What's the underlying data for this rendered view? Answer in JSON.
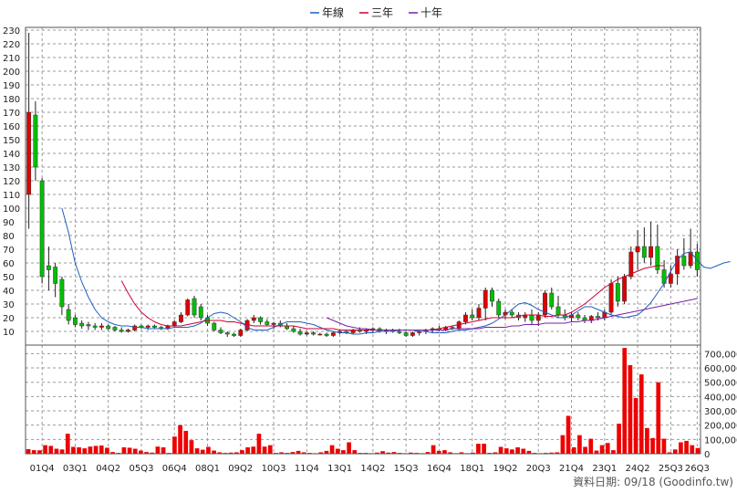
{
  "legend": [
    {
      "name": "年線",
      "color": "#1f5fbf"
    },
    {
      "name": "三年",
      "color": "#cc0033"
    },
    {
      "name": "十年",
      "color": "#7a1fa8"
    }
  ],
  "footer": {
    "source": "資料日期: 09/18  (Goodinfo.tw)"
  },
  "colors": {
    "up": "#e00000",
    "down": "#00c000",
    "volume": "#ee0000",
    "wick": "#222222"
  },
  "chart_data": [
    {
      "type": "candlestick",
      "title": "",
      "yticks": [
        10,
        20,
        30,
        40,
        50,
        60,
        70,
        80,
        90,
        100,
        110,
        120,
        130,
        140,
        150,
        160,
        170,
        180,
        190,
        200,
        210,
        220,
        230
      ],
      "ylim": [
        0,
        232
      ],
      "xticks": [
        "01Q4",
        "03Q1",
        "04Q2",
        "05Q3",
        "06Q4",
        "08Q1",
        "09Q2",
        "10Q3",
        "11Q4",
        "13Q1",
        "14Q2",
        "15Q3",
        "16Q4",
        "18Q1",
        "19Q2",
        "20Q3",
        "21Q4",
        "23Q1",
        "24Q2",
        "25Q3",
        "26Q3"
      ],
      "xtick_index": [
        2,
        7,
        12,
        17,
        22,
        27,
        32,
        37,
        42,
        47,
        52,
        57,
        62,
        67,
        72,
        77,
        82,
        87,
        92,
        97,
        101
      ],
      "ohlc": [
        [
          110,
          228,
          85,
          170
        ],
        [
          168,
          178,
          120,
          130
        ],
        [
          120,
          122,
          45,
          50
        ],
        [
          58,
          72,
          40,
          55
        ],
        [
          57,
          60,
          35,
          45
        ],
        [
          48,
          50,
          22,
          28
        ],
        [
          26,
          30,
          15,
          18
        ],
        [
          20,
          22,
          13,
          15
        ],
        [
          16,
          18,
          12,
          14
        ],
        [
          15,
          17,
          11,
          14
        ],
        [
          14,
          16,
          11,
          13
        ],
        [
          13,
          16,
          11,
          14
        ],
        [
          14,
          15,
          11,
          12
        ],
        [
          13,
          14,
          10,
          11
        ],
        [
          11,
          13,
          9,
          10
        ],
        [
          10,
          12,
          9,
          11
        ],
        [
          11,
          15,
          10,
          14
        ],
        [
          14,
          15,
          12,
          13
        ],
        [
          13,
          15,
          11,
          14
        ],
        [
          14,
          15,
          12,
          13
        ],
        [
          13,
          14,
          11,
          12
        ],
        [
          12,
          15,
          11,
          14
        ],
        [
          14,
          18,
          13,
          17
        ],
        [
          17,
          24,
          16,
          22
        ],
        [
          22,
          34,
          21,
          33
        ],
        [
          34,
          36,
          20,
          22
        ],
        [
          28,
          30,
          18,
          20
        ],
        [
          20,
          22,
          14,
          16
        ],
        [
          16,
          17,
          10,
          11
        ],
        [
          11,
          13,
          8,
          9
        ],
        [
          9,
          10,
          6,
          8
        ],
        [
          8,
          9,
          6,
          7
        ],
        [
          7,
          12,
          6,
          11
        ],
        [
          11,
          19,
          10,
          18
        ],
        [
          18,
          22,
          16,
          20
        ],
        [
          20,
          21,
          15,
          17
        ],
        [
          17,
          19,
          14,
          15
        ],
        [
          15,
          17,
          12,
          16
        ],
        [
          16,
          18,
          13,
          14
        ],
        [
          14,
          16,
          11,
          12
        ],
        [
          12,
          14,
          9,
          10
        ],
        [
          10,
          12,
          7,
          8
        ],
        [
          8,
          10,
          7,
          9
        ],
        [
          9,
          10,
          7,
          8
        ],
        [
          8,
          9,
          7,
          8
        ],
        [
          8,
          9,
          6,
          7
        ],
        [
          7,
          10,
          6,
          9
        ],
        [
          9,
          11,
          8,
          10
        ],
        [
          10,
          11,
          8,
          9
        ],
        [
          9,
          12,
          8,
          11
        ],
        [
          11,
          13,
          9,
          10
        ],
        [
          10,
          12,
          8,
          11
        ],
        [
          11,
          13,
          9,
          12
        ],
        [
          12,
          13,
          9,
          10
        ],
        [
          10,
          12,
          8,
          11
        ],
        [
          11,
          12,
          9,
          10
        ],
        [
          10,
          12,
          8,
          9
        ],
        [
          9,
          10,
          6,
          7
        ],
        [
          7,
          10,
          6,
          9
        ],
        [
          9,
          11,
          7,
          10
        ],
        [
          10,
          12,
          8,
          11
        ],
        [
          11,
          13,
          9,
          12
        ],
        [
          12,
          14,
          10,
          11
        ],
        [
          11,
          14,
          10,
          13
        ],
        [
          13,
          14,
          11,
          12
        ],
        [
          12,
          18,
          11,
          17
        ],
        [
          17,
          24,
          15,
          22
        ],
        [
          22,
          26,
          18,
          20
        ],
        [
          20,
          30,
          18,
          27
        ],
        [
          27,
          42,
          18,
          40
        ],
        [
          40,
          42,
          28,
          32
        ],
        [
          32,
          34,
          20,
          22
        ],
        [
          22,
          26,
          19,
          24
        ],
        [
          24,
          26,
          20,
          22
        ],
        [
          22,
          24,
          18,
          20
        ],
        [
          20,
          24,
          17,
          22
        ],
        [
          22,
          26,
          15,
          18
        ],
        [
          18,
          24,
          14,
          22
        ],
        [
          22,
          40,
          20,
          38
        ],
        [
          38,
          42,
          26,
          28
        ],
        [
          28,
          36,
          20,
          22
        ],
        [
          22,
          26,
          18,
          20
        ],
        [
          20,
          24,
          17,
          22
        ],
        [
          22,
          24,
          18,
          20
        ],
        [
          20,
          22,
          16,
          18
        ],
        [
          18,
          22,
          16,
          21
        ],
        [
          21,
          24,
          18,
          20
        ],
        [
          20,
          26,
          18,
          24
        ],
        [
          24,
          48,
          22,
          45
        ],
        [
          45,
          50,
          28,
          32
        ],
        [
          32,
          52,
          30,
          50
        ],
        [
          50,
          72,
          48,
          68
        ],
        [
          68,
          84,
          55,
          72
        ],
        [
          72,
          86,
          60,
          64
        ],
        [
          64,
          90,
          58,
          72
        ],
        [
          72,
          88,
          52,
          55
        ],
        [
          55,
          62,
          42,
          45
        ],
        [
          45,
          58,
          42,
          52
        ],
        [
          52,
          70,
          44,
          65
        ],
        [
          65,
          78,
          55,
          58
        ],
        [
          58,
          85,
          56,
          68
        ],
        [
          68,
          74,
          50,
          55
        ]
      ],
      "series": [
        {
          "name": "年線",
          "color": "#1f5fbf",
          "start": 5,
          "values": [
            100,
            82,
            60,
            46,
            35,
            26,
            20,
            17,
            15,
            14,
            14,
            13,
            13,
            12,
            12,
            12,
            12,
            13,
            13,
            13,
            14,
            16,
            20,
            23,
            24,
            23,
            20,
            17,
            13,
            11,
            11,
            11,
            13,
            15,
            17,
            17,
            17,
            16,
            15,
            13,
            11,
            10,
            9,
            9,
            8,
            8,
            9,
            9,
            10,
            10,
            10,
            11,
            11,
            11,
            10,
            10,
            9,
            9,
            9,
            10,
            11,
            11,
            12,
            13,
            14,
            16,
            19,
            22,
            26,
            30,
            31,
            29,
            26,
            24,
            22,
            20,
            20,
            22,
            25,
            28,
            28,
            26,
            24,
            22,
            21,
            20,
            21,
            22,
            26,
            31,
            38,
            45,
            54,
            62,
            67,
            68,
            62,
            57,
            56,
            58,
            60,
            61
          ]
        },
        {
          "name": "三年",
          "color": "#cc0033",
          "start": 14,
          "values": [
            47,
            38,
            30,
            24,
            20,
            17,
            15,
            14,
            14,
            14,
            15,
            16,
            17,
            18,
            18,
            18,
            17,
            17,
            16,
            15,
            14,
            14,
            14,
            14,
            14,
            14,
            14,
            13,
            12,
            12,
            12,
            12,
            12,
            11,
            11,
            11,
            11,
            11,
            11,
            11,
            11,
            11,
            11,
            11,
            11,
            11,
            11,
            11,
            12,
            13,
            14,
            15,
            16,
            17,
            18,
            19,
            20,
            20,
            20,
            20,
            21,
            22,
            22,
            22,
            21,
            21,
            22,
            22,
            24,
            27,
            30,
            34,
            38,
            42,
            45,
            48,
            50,
            52,
            54,
            56,
            57,
            58,
            58
          ]
        },
        {
          "name": "十年",
          "color": "#7a1fa8",
          "start": 45,
          "values": [
            20,
            18,
            16,
            14,
            13,
            12,
            12,
            11,
            11,
            11,
            11,
            11,
            11,
            11,
            11,
            11,
            11,
            11,
            11,
            12,
            12,
            12,
            12,
            12,
            13,
            13,
            13,
            13,
            14,
            14,
            15,
            15,
            15,
            16,
            16,
            16,
            16,
            17,
            17,
            18,
            18,
            19,
            20,
            21,
            22,
            23,
            24,
            25,
            26,
            27,
            28,
            29,
            30,
            31,
            32,
            33,
            34
          ]
        }
      ]
    },
    {
      "type": "bar",
      "title": "",
      "yticks": [
        0,
        100000,
        200000,
        300000,
        400000,
        500000,
        600000,
        700000
      ],
      "yticklabels": [
        "0",
        "100,000",
        "200,000",
        "300,000",
        "400,000",
        "500,000",
        "600,000",
        "700,000"
      ],
      "ylim": [
        0,
        760000
      ],
      "values": [
        32000,
        25000,
        24000,
        60000,
        55000,
        35000,
        30000,
        140000,
        48000,
        45000,
        38000,
        50000,
        55000,
        58000,
        42000,
        12000,
        6000,
        45000,
        42000,
        35000,
        22000,
        12000,
        8000,
        50000,
        45000,
        6000,
        120000,
        200000,
        160000,
        95000,
        38000,
        28000,
        48000,
        22000,
        10000,
        6000,
        8000,
        10000,
        25000,
        45000,
        50000,
        140000,
        50000,
        60000,
        6000,
        10000,
        6000,
        12000,
        20000,
        10000,
        6000,
        4000,
        10000,
        20000,
        60000,
        35000,
        25000,
        80000,
        25000,
        6000,
        6000,
        4000,
        8000,
        18000,
        8000,
        12000,
        6000,
        4000,
        8000,
        6000,
        4000,
        12000,
        60000,
        20000,
        25000,
        10000,
        4000,
        10000,
        4000,
        8000,
        70000,
        70000,
        6000,
        10000,
        48000,
        38000,
        30000,
        45000,
        35000,
        20000,
        6000,
        4000,
        6000,
        8000,
        10000,
        130000,
        265000,
        45000,
        130000,
        48000,
        105000,
        22000,
        60000,
        75000,
        25000,
        210000,
        740000,
        620000,
        390000,
        555000,
        180000,
        110000,
        500000,
        105000,
        10000,
        30000,
        80000,
        90000,
        60000,
        40000
      ]
    }
  ]
}
